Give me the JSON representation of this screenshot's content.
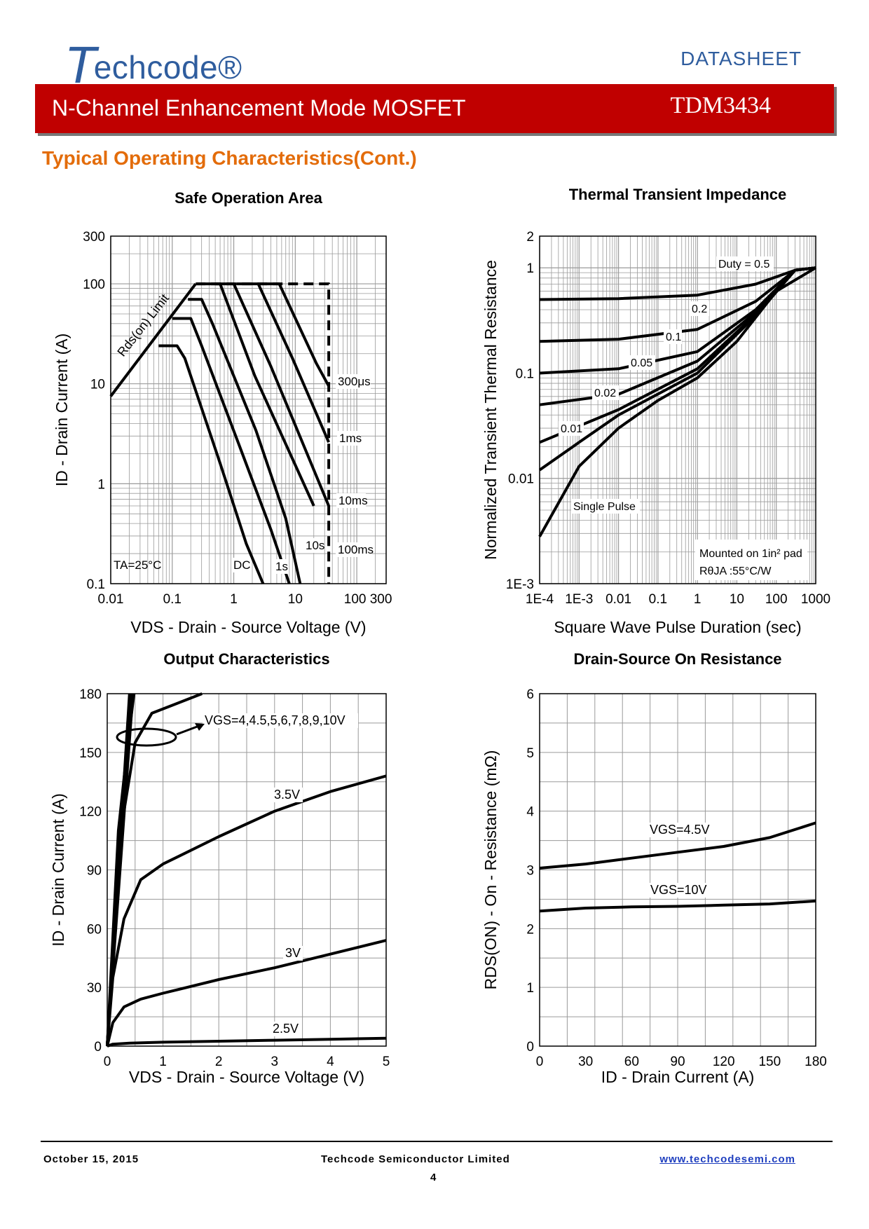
{
  "header": {
    "logo_initial": "T",
    "logo_rest": "echcode®",
    "doc_type": "DATASHEET",
    "banner_title": "N-Channel Enhancement Mode MOSFET",
    "part_number": "TDM3434"
  },
  "section_title": "Typical Operating Characteristics(Cont.)",
  "chart_data": [
    {
      "id": "soa",
      "type": "line",
      "title": "Safe Operation Area",
      "xlabel": "VDS - Drain - Source Voltage (V)",
      "ylabel": "ID - Drain Current (A)",
      "xscale": "log",
      "yscale": "log",
      "xlim": [
        0.01,
        300
      ],
      "ylim": [
        0.1,
        300
      ],
      "xticks": [
        "0.01",
        "0.1",
        "1",
        "10",
        "100 300"
      ],
      "yticks": [
        "0.1",
        "1",
        "10",
        "100",
        "300"
      ],
      "annotations": [
        "Rds(on) Limit",
        "TA=25°C",
        "DC",
        "1s",
        "10s",
        "100ms",
        "10ms",
        "1ms",
        "300μs"
      ],
      "series": [
        {
          "name": "Rds(on) Limit",
          "points": [
            [
              0.01,
              7.5
            ],
            [
              0.24,
              100
            ]
          ]
        },
        {
          "name": "DC",
          "points": [
            [
              0.06,
              24
            ],
            [
              0.12,
              24
            ],
            [
              0.16,
              18
            ],
            [
              0.6,
              1.6
            ],
            [
              1.6,
              0.25
            ],
            [
              3.0,
              0.1
            ]
          ]
        },
        {
          "name": "1s",
          "points": [
            [
              0.1,
              45
            ],
            [
              0.2,
              45
            ],
            [
              0.3,
              24
            ],
            [
              1.3,
              2.2
            ],
            [
              4.0,
              0.35
            ],
            [
              8.0,
              0.1
            ]
          ]
        },
        {
          "name": "10s",
          "points": [
            [
              0.18,
              70
            ],
            [
              0.3,
              70
            ],
            [
              0.45,
              40
            ],
            [
              2.3,
              3.4
            ],
            [
              7.0,
              0.45
            ],
            [
              12.0,
              0.1
            ]
          ]
        },
        {
          "name": "100ms",
          "points": [
            [
              0.25,
              100
            ],
            [
              0.6,
              100
            ],
            [
              2.2,
              12
            ],
            [
              20,
              0.6
            ]
          ]
        },
        {
          "name": "10ms",
          "points": [
            [
              0.5,
              100
            ],
            [
              1.0,
              100
            ],
            [
              4.0,
              15
            ],
            [
              35,
              0.6
            ]
          ]
        },
        {
          "name": "1ms",
          "points": [
            [
              1.1,
              100
            ],
            [
              2.5,
              100
            ],
            [
              9.0,
              18
            ],
            [
              35,
              2.6
            ]
          ]
        },
        {
          "name": "300μs",
          "points": [
            [
              2.5,
              100
            ],
            [
              5.5,
              100
            ],
            [
              22,
              16
            ],
            [
              35,
              9.5
            ]
          ]
        },
        {
          "name": "Limit (dashed)",
          "dashed": true,
          "points": [
            [
              0.24,
              100
            ],
            [
              35,
              100
            ],
            [
              35,
              0.1
            ]
          ]
        }
      ]
    },
    {
      "id": "tti",
      "type": "line",
      "title": "Thermal Transient Impedance",
      "xlabel": "Square Wave Pulse Duration (sec)",
      "ylabel": "Normalized Transient Thermal Resistance",
      "xscale": "log",
      "yscale": "log",
      "xlim": [
        0.0001,
        1000
      ],
      "ylim": [
        0.001,
        2
      ],
      "xticks": [
        "1E-4",
        "1E-3",
        "0.01",
        "0.1",
        "1",
        "10",
        "100",
        "1000"
      ],
      "yticks": [
        "1E-3",
        "0.01",
        "0.1",
        "1",
        "2"
      ],
      "annotations": [
        "Duty = 0.5",
        "0.2",
        "0.1",
        "0.05",
        "0.02",
        "0.01",
        "Single Pulse",
        "Mounted on 1in² pad",
        "RθJA :55°C/W"
      ],
      "series": [
        {
          "name": "Duty = 0.5",
          "points": [
            [
              0.0001,
              0.5
            ],
            [
              0.01,
              0.51
            ],
            [
              1,
              0.55
            ],
            [
              30,
              0.7
            ],
            [
              300,
              0.95
            ],
            [
              1000,
              1.0
            ]
          ]
        },
        {
          "name": "0.2",
          "points": [
            [
              0.0001,
              0.2
            ],
            [
              0.01,
              0.21
            ],
            [
              1,
              0.26
            ],
            [
              30,
              0.48
            ],
            [
              300,
              0.95
            ],
            [
              1000,
              1.0
            ]
          ]
        },
        {
          "name": "0.1",
          "points": [
            [
              0.0001,
              0.1
            ],
            [
              0.01,
              0.11
            ],
            [
              1,
              0.16
            ],
            [
              30,
              0.4
            ],
            [
              300,
              0.95
            ],
            [
              1000,
              1.0
            ]
          ]
        },
        {
          "name": "0.05",
          "points": [
            [
              0.0001,
              0.05
            ],
            [
              0.01,
              0.063
            ],
            [
              1,
              0.13
            ],
            [
              30,
              0.38
            ],
            [
              300,
              0.95
            ],
            [
              1000,
              1.0
            ]
          ]
        },
        {
          "name": "0.02",
          "points": [
            [
              0.0001,
              0.022
            ],
            [
              0.01,
              0.045
            ],
            [
              1,
              0.11
            ],
            [
              30,
              0.36
            ],
            [
              300,
              0.95
            ],
            [
              1000,
              1.0
            ]
          ]
        },
        {
          "name": "0.01",
          "points": [
            [
              0.0001,
              0.012
            ],
            [
              0.001,
              0.022
            ],
            [
              0.01,
              0.04
            ],
            [
              1,
              0.1
            ],
            [
              30,
              0.35
            ],
            [
              300,
              0.95
            ],
            [
              1000,
              1.0
            ]
          ]
        },
        {
          "name": "Single Pulse",
          "points": [
            [
              0.0001,
              0.0028
            ],
            [
              0.001,
              0.013
            ],
            [
              0.01,
              0.03
            ],
            [
              0.1,
              0.055
            ],
            [
              1,
              0.09
            ],
            [
              10,
              0.2
            ],
            [
              100,
              0.6
            ],
            [
              1000,
              1.0
            ]
          ]
        }
      ]
    },
    {
      "id": "output",
      "type": "line",
      "title": "Output Characteristics",
      "xlabel": "VDS - Drain - Source Voltage (V)",
      "ylabel": "ID - Drain Current (A)",
      "xlim": [
        0,
        5
      ],
      "ylim": [
        0,
        180
      ],
      "xticks": [
        0,
        1,
        2,
        3,
        4,
        5
      ],
      "yticks": [
        0,
        30,
        60,
        90,
        120,
        150,
        180
      ],
      "annotations": [
        "VGS=4,4.5,5,6,7,8,9,10V",
        "3.5V",
        "3V",
        "2.5V"
      ],
      "series": [
        {
          "name": "VGS=10V",
          "points": [
            [
              0,
              0
            ],
            [
              0.4,
              180
            ]
          ]
        },
        {
          "name": "VGS=9V",
          "points": [
            [
              0,
              0
            ],
            [
              0.41,
              180
            ]
          ]
        },
        {
          "name": "VGS=8V",
          "points": [
            [
              0,
              0
            ],
            [
              0.42,
              180
            ]
          ]
        },
        {
          "name": "VGS=7V",
          "points": [
            [
              0,
              0
            ],
            [
              0.43,
              180
            ]
          ]
        },
        {
          "name": "VGS=6V",
          "points": [
            [
              0,
              0
            ],
            [
              0.44,
              180
            ]
          ]
        },
        {
          "name": "VGS=5V",
          "points": [
            [
              0,
              0
            ],
            [
              0.46,
              180
            ]
          ]
        },
        {
          "name": "VGS=4.5V",
          "points": [
            [
              0,
              0
            ],
            [
              0.2,
              110
            ],
            [
              0.35,
              150
            ],
            [
              0.48,
              180
            ]
          ]
        },
        {
          "name": "VGS=4V",
          "points": [
            [
              0,
              0
            ],
            [
              0.1,
              50
            ],
            [
              0.3,
              120
            ],
            [
              0.5,
              155
            ],
            [
              0.8,
              170
            ],
            [
              1.7,
              180
            ]
          ]
        },
        {
          "name": "3.5V",
          "points": [
            [
              0,
              0
            ],
            [
              0.1,
              35
            ],
            [
              0.3,
              65
            ],
            [
              0.6,
              85
            ],
            [
              1.0,
              93
            ],
            [
              1.5,
              100
            ],
            [
              2.0,
              107
            ],
            [
              3.0,
              120
            ],
            [
              4.0,
              130
            ],
            [
              5.0,
              138
            ]
          ]
        },
        {
          "name": "3V",
          "points": [
            [
              0,
              0
            ],
            [
              0.1,
              12
            ],
            [
              0.3,
              20
            ],
            [
              0.6,
              24
            ],
            [
              1.0,
              27
            ],
            [
              2.0,
              34
            ],
            [
              3.0,
              40
            ],
            [
              4.0,
              47
            ],
            [
              5.0,
              54
            ]
          ]
        },
        {
          "name": "2.5V",
          "points": [
            [
              0,
              0
            ],
            [
              0.1,
              1
            ],
            [
              0.4,
              1.5
            ],
            [
              1.0,
              2
            ],
            [
              2.0,
              2.5
            ],
            [
              3.0,
              3
            ],
            [
              4.0,
              3.5
            ],
            [
              5.0,
              4
            ]
          ]
        }
      ]
    },
    {
      "id": "rdson",
      "type": "line",
      "title": "Drain-Source On Resistance",
      "xlabel": "ID - Drain Current (A)",
      "ylabel": "RDS(ON) - On - Resistance (mΩ)",
      "xlim": [
        0,
        180
      ],
      "ylim": [
        0,
        6
      ],
      "xticks": [
        0,
        30,
        60,
        90,
        120,
        150,
        180
      ],
      "yticks": [
        0,
        1,
        2,
        3,
        4,
        5,
        6
      ],
      "annotations": [
        "VGS=4.5V",
        "VGS=10V"
      ],
      "series": [
        {
          "name": "VGS=4.5V",
          "points": [
            [
              0,
              3.03
            ],
            [
              30,
              3.1
            ],
            [
              60,
              3.2
            ],
            [
              90,
              3.3
            ],
            [
              120,
              3.4
            ],
            [
              150,
              3.55
            ],
            [
              180,
              3.8
            ]
          ]
        },
        {
          "name": "VGS=10V",
          "points": [
            [
              0,
              2.3
            ],
            [
              30,
              2.35
            ],
            [
              60,
              2.37
            ],
            [
              90,
              2.38
            ],
            [
              120,
              2.4
            ],
            [
              150,
              2.42
            ],
            [
              180,
              2.47
            ]
          ]
        }
      ]
    }
  ],
  "footer": {
    "date": "October  15,  2015",
    "company": "Techcode  Semiconductor  Limited",
    "url": "www.techcodesemi.com",
    "page": "4"
  }
}
